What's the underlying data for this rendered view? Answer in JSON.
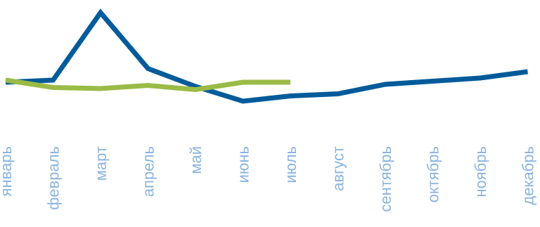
{
  "chart_data": {
    "type": "line",
    "title": "",
    "xlabel": "",
    "ylabel": "",
    "grid": false,
    "legend": "none",
    "categories": [
      "январь",
      "февраль",
      "март",
      "апрель",
      "май",
      "июнь",
      "июль",
      "август",
      "сентябрь",
      "октябрь",
      "ноябрь",
      "декабрь"
    ],
    "ylim": [
      0,
      100
    ],
    "series": [
      {
        "color": "#005B9A",
        "values": [
          34,
          36,
          100,
          47,
          30,
          16,
          21,
          23,
          32,
          35,
          38,
          44
        ]
      },
      {
        "color": "#9BBB47",
        "values": [
          36,
          29,
          28,
          31,
          27,
          34,
          34,
          null,
          null,
          null,
          null,
          null
        ]
      }
    ],
    "tick_label_color": "#8AB4DE"
  }
}
